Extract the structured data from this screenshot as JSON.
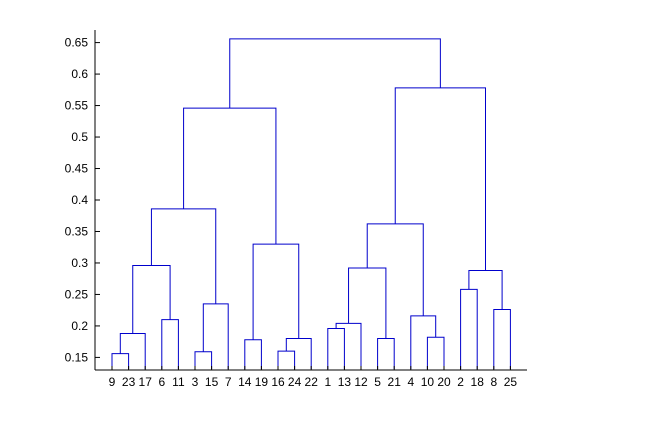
{
  "chart_data": {
    "type": "dendrogram",
    "title": "",
    "xlabel": "",
    "ylabel": "",
    "ylim": [
      0.13,
      0.67
    ],
    "grid": false,
    "legend": "none",
    "y_ticks": [
      0.15,
      0.2,
      0.25,
      0.3,
      0.35,
      0.4,
      0.45,
      0.5,
      0.55,
      0.6,
      0.65
    ],
    "y_tick_labels": [
      "0.15",
      "0.2",
      "0.25",
      "0.3",
      "0.35",
      "0.4",
      "0.45",
      "0.5",
      "0.55",
      "0.6",
      "0.65"
    ],
    "leaf_order": [
      "9",
      "23",
      "17",
      "6",
      "11",
      "3",
      "15",
      "7",
      "14",
      "19",
      "16",
      "24",
      "22",
      "1",
      "13",
      "12",
      "5",
      "21",
      "4",
      "10",
      "20",
      "2",
      "18",
      "8",
      "25"
    ],
    "merges": [
      {
        "id": "A",
        "left": "9",
        "right": "23",
        "height": 0.156
      },
      {
        "id": "B",
        "left": "A",
        "right": "17",
        "height": 0.188
      },
      {
        "id": "C",
        "left": "6",
        "right": "11",
        "height": 0.21
      },
      {
        "id": "D",
        "left": "B",
        "right": "C",
        "height": 0.296
      },
      {
        "id": "E",
        "left": "3",
        "right": "15",
        "height": 0.159
      },
      {
        "id": "F",
        "left": "E",
        "right": "7",
        "height": 0.235
      },
      {
        "id": "G",
        "left": "D",
        "right": "F",
        "height": 0.386
      },
      {
        "id": "H",
        "left": "14",
        "right": "19",
        "height": 0.178
      },
      {
        "id": "I",
        "left": "16",
        "right": "24",
        "height": 0.16
      },
      {
        "id": "J",
        "left": "I",
        "right": "22",
        "height": 0.18
      },
      {
        "id": "K",
        "left": "H",
        "right": "J",
        "height": 0.33
      },
      {
        "id": "L",
        "left": "G",
        "right": "K",
        "height": 0.546
      },
      {
        "id": "M",
        "left": "1",
        "right": "13",
        "height": 0.196
      },
      {
        "id": "N",
        "left": "M",
        "right": "12",
        "height": 0.204
      },
      {
        "id": "O",
        "left": "5",
        "right": "21",
        "height": 0.18
      },
      {
        "id": "P",
        "left": "N",
        "right": "O",
        "height": 0.292
      },
      {
        "id": "Q",
        "left": "10",
        "right": "20",
        "height": 0.182
      },
      {
        "id": "R",
        "left": "4",
        "right": "Q",
        "height": 0.216
      },
      {
        "id": "S",
        "left": "P",
        "right": "R",
        "height": 0.362
      },
      {
        "id": "T",
        "left": "2",
        "right": "18",
        "height": 0.258
      },
      {
        "id": "U",
        "left": "8",
        "right": "25",
        "height": 0.226
      },
      {
        "id": "V",
        "left": "T",
        "right": "U",
        "height": 0.288
      },
      {
        "id": "W",
        "left": "S",
        "right": "V",
        "height": 0.578
      },
      {
        "id": "X",
        "left": "L",
        "right": "W",
        "height": 0.656
      }
    ],
    "colors": {
      "links": "#0000cc",
      "axis": "#000000",
      "background": "#ffffff"
    }
  }
}
